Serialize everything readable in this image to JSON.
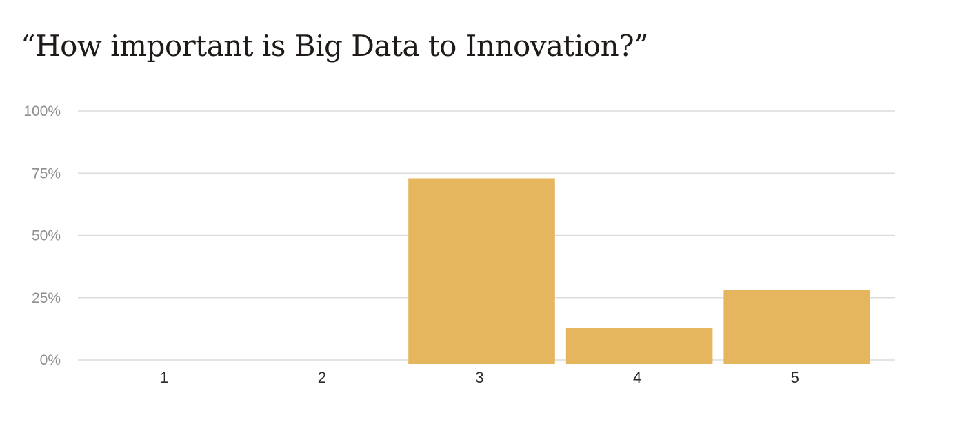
{
  "chart_data": {
    "type": "bar",
    "title": "“How important is Big Data to Innovation?”",
    "categories": [
      "1",
      "2",
      "3",
      "4",
      "5"
    ],
    "values": [
      0,
      0,
      73,
      13,
      28
    ],
    "ylim": [
      0,
      100
    ],
    "yticks": [
      0,
      25,
      50,
      75,
      100
    ],
    "ytick_labels": [
      "0%",
      "25%",
      "50%",
      "75%",
      "100%"
    ],
    "xlabel": "",
    "ylabel": "",
    "grid": true,
    "legend": "none",
    "bar_color": "#e6b65e",
    "grid_color": "#dcdcdc"
  }
}
